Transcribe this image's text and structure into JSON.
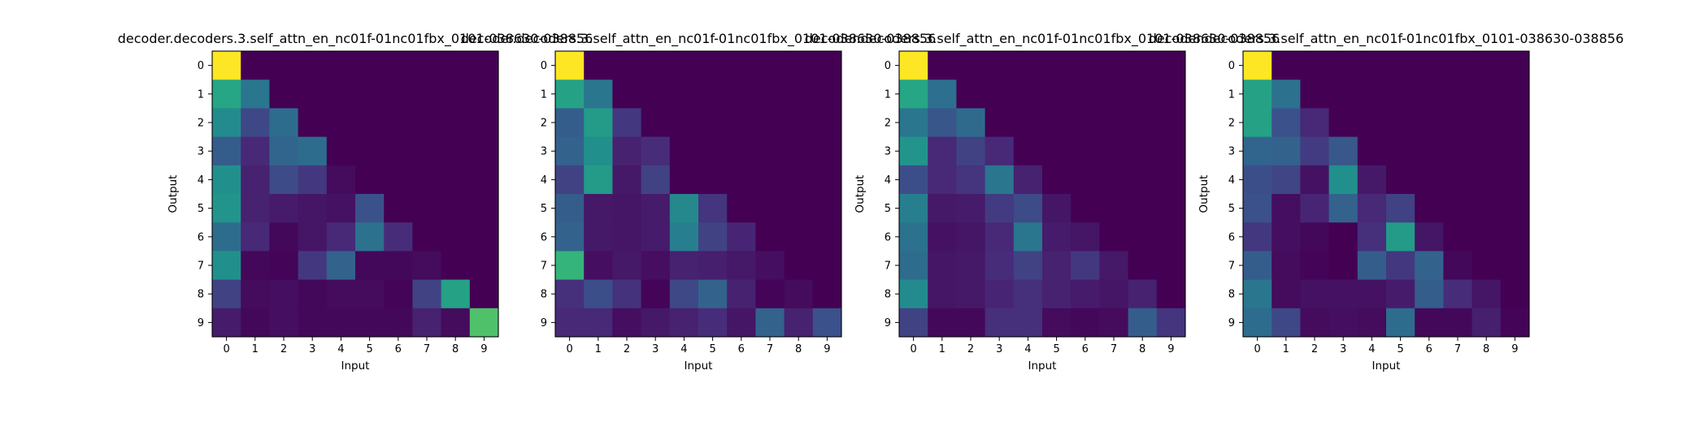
{
  "chart_data": [
    {
      "type": "heatmap",
      "title": "decoder.decoders.3.self_attn_en_nc01f-01nc01fbx_0101-038630-038856",
      "xlabel": "Input",
      "ylabel": "Output",
      "x_ticks": [
        "0",
        "1",
        "2",
        "3",
        "4",
        "5",
        "6",
        "7",
        "8",
        "9"
      ],
      "y_ticks": [
        "0",
        "1",
        "2",
        "3",
        "4",
        "5",
        "6",
        "7",
        "8",
        "9"
      ],
      "colormap": "viridis",
      "value_range": [
        0,
        1
      ],
      "values": [
        [
          1.0,
          0,
          0,
          0,
          0,
          0,
          0,
          0,
          0,
          0
        ],
        [
          0.6,
          0.4,
          0,
          0,
          0,
          0,
          0,
          0,
          0,
          0
        ],
        [
          0.48,
          0.22,
          0.36,
          0,
          0,
          0,
          0,
          0,
          0,
          0
        ],
        [
          0.3,
          0.12,
          0.33,
          0.36,
          0,
          0,
          0,
          0,
          0,
          0
        ],
        [
          0.5,
          0.1,
          0.23,
          0.17,
          0.03,
          0,
          0,
          0,
          0,
          0
        ],
        [
          0.52,
          0.1,
          0.08,
          0.06,
          0.05,
          0.25,
          0,
          0,
          0,
          0
        ],
        [
          0.36,
          0.12,
          0.02,
          0.06,
          0.12,
          0.38,
          0.13,
          0,
          0,
          0
        ],
        [
          0.5,
          0.02,
          0.01,
          0.17,
          0.32,
          0.02,
          0.02,
          0.03,
          0,
          0
        ],
        [
          0.2,
          0.03,
          0.04,
          0.02,
          0.03,
          0.03,
          0.01,
          0.2,
          0.58,
          0
        ],
        [
          0.08,
          0.02,
          0.04,
          0.02,
          0.02,
          0.02,
          0.02,
          0.1,
          0.03,
          0.72
        ]
      ]
    },
    {
      "type": "heatmap",
      "title": "decoder.decoders.3.self_attn_en_nc01f-01nc01fbx_0101-038630-038856",
      "xlabel": "Input",
      "ylabel": "",
      "x_ticks": [
        "0",
        "1",
        "2",
        "3",
        "4",
        "5",
        "6",
        "7",
        "8",
        "9"
      ],
      "y_ticks": [
        "0",
        "1",
        "2",
        "3",
        "4",
        "5",
        "6",
        "7",
        "8",
        "9"
      ],
      "colormap": "viridis",
      "value_range": [
        0,
        1
      ],
      "values": [
        [
          1.0,
          0,
          0,
          0,
          0,
          0,
          0,
          0,
          0,
          0
        ],
        [
          0.58,
          0.4,
          0,
          0,
          0,
          0,
          0,
          0,
          0,
          0
        ],
        [
          0.3,
          0.55,
          0.17,
          0,
          0,
          0,
          0,
          0,
          0,
          0
        ],
        [
          0.32,
          0.5,
          0.1,
          0.13,
          0,
          0,
          0,
          0,
          0,
          0
        ],
        [
          0.2,
          0.55,
          0.07,
          0.2,
          0,
          0,
          0,
          0,
          0,
          0
        ],
        [
          0.3,
          0.07,
          0.06,
          0.08,
          0.47,
          0.16,
          0,
          0,
          0,
          0
        ],
        [
          0.32,
          0.07,
          0.06,
          0.08,
          0.43,
          0.2,
          0.11,
          0,
          0,
          0
        ],
        [
          0.66,
          0.04,
          0.07,
          0.04,
          0.1,
          0.09,
          0.07,
          0.04,
          0,
          0
        ],
        [
          0.14,
          0.24,
          0.15,
          0.01,
          0.22,
          0.32,
          0.1,
          0.01,
          0.03,
          0
        ],
        [
          0.12,
          0.12,
          0.04,
          0.07,
          0.1,
          0.13,
          0.06,
          0.32,
          0.1,
          0.25
        ]
      ]
    },
    {
      "type": "heatmap",
      "title": "decoder.decoders.3.self_attn_en_nc01f-01nc01fbx_0101-038630-038856",
      "xlabel": "Input",
      "ylabel": "Output",
      "x_ticks": [
        "0",
        "1",
        "2",
        "3",
        "4",
        "5",
        "6",
        "7",
        "8",
        "9"
      ],
      "y_ticks": [
        "0",
        "1",
        "2",
        "3",
        "4",
        "5",
        "6",
        "7",
        "8",
        "9"
      ],
      "colormap": "viridis",
      "value_range": [
        0,
        1
      ],
      "values": [
        [
          1.0,
          0,
          0,
          0,
          0,
          0,
          0,
          0,
          0,
          0
        ],
        [
          0.6,
          0.37,
          0,
          0,
          0,
          0,
          0,
          0,
          0,
          0
        ],
        [
          0.4,
          0.27,
          0.35,
          0,
          0,
          0,
          0,
          0,
          0,
          0
        ],
        [
          0.52,
          0.12,
          0.2,
          0.12,
          0,
          0,
          0,
          0,
          0,
          0
        ],
        [
          0.24,
          0.12,
          0.16,
          0.4,
          0.1,
          0,
          0,
          0,
          0,
          0
        ],
        [
          0.43,
          0.07,
          0.08,
          0.18,
          0.23,
          0.06,
          0,
          0,
          0,
          0
        ],
        [
          0.38,
          0.05,
          0.06,
          0.12,
          0.4,
          0.08,
          0.06,
          0,
          0,
          0
        ],
        [
          0.36,
          0.06,
          0.07,
          0.13,
          0.2,
          0.1,
          0.17,
          0.07,
          0,
          0
        ],
        [
          0.48,
          0.06,
          0.07,
          0.11,
          0.14,
          0.1,
          0.08,
          0.06,
          0.1,
          0
        ],
        [
          0.2,
          0.02,
          0.02,
          0.14,
          0.14,
          0.03,
          0.02,
          0.03,
          0.3,
          0.16
        ]
      ]
    },
    {
      "type": "heatmap",
      "title": "decoder.decoders.3.self_attn_en_nc01f-01nc01fbx_0101-038630-038856",
      "xlabel": "Input",
      "ylabel": "Output",
      "x_ticks": [
        "0",
        "1",
        "2",
        "3",
        "4",
        "5",
        "6",
        "7",
        "8",
        "9"
      ],
      "y_ticks": [
        "0",
        "1",
        "2",
        "3",
        "4",
        "5",
        "6",
        "7",
        "8",
        "9"
      ],
      "colormap": "viridis",
      "value_range": [
        0,
        1
      ],
      "values": [
        [
          1.0,
          0,
          0,
          0,
          0,
          0,
          0,
          0,
          0,
          0
        ],
        [
          0.58,
          0.38,
          0,
          0,
          0,
          0,
          0,
          0,
          0,
          0
        ],
        [
          0.58,
          0.25,
          0.12,
          0,
          0,
          0,
          0,
          0,
          0,
          0
        ],
        [
          0.33,
          0.32,
          0.18,
          0.28,
          0,
          0,
          0,
          0,
          0,
          0
        ],
        [
          0.24,
          0.21,
          0.05,
          0.5,
          0.07,
          0,
          0,
          0,
          0,
          0
        ],
        [
          0.25,
          0.04,
          0.11,
          0.32,
          0.12,
          0.2,
          0,
          0,
          0,
          0
        ],
        [
          0.17,
          0.04,
          0.02,
          0.0,
          0.14,
          0.55,
          0.06,
          0,
          0,
          0
        ],
        [
          0.3,
          0.03,
          0.01,
          0.0,
          0.3,
          0.17,
          0.32,
          0.02,
          0,
          0
        ],
        [
          0.4,
          0.03,
          0.05,
          0.05,
          0.05,
          0.08,
          0.3,
          0.13,
          0.06,
          0
        ],
        [
          0.36,
          0.22,
          0.03,
          0.04,
          0.03,
          0.36,
          0.02,
          0.02,
          0.09,
          0.01
        ]
      ]
    }
  ]
}
